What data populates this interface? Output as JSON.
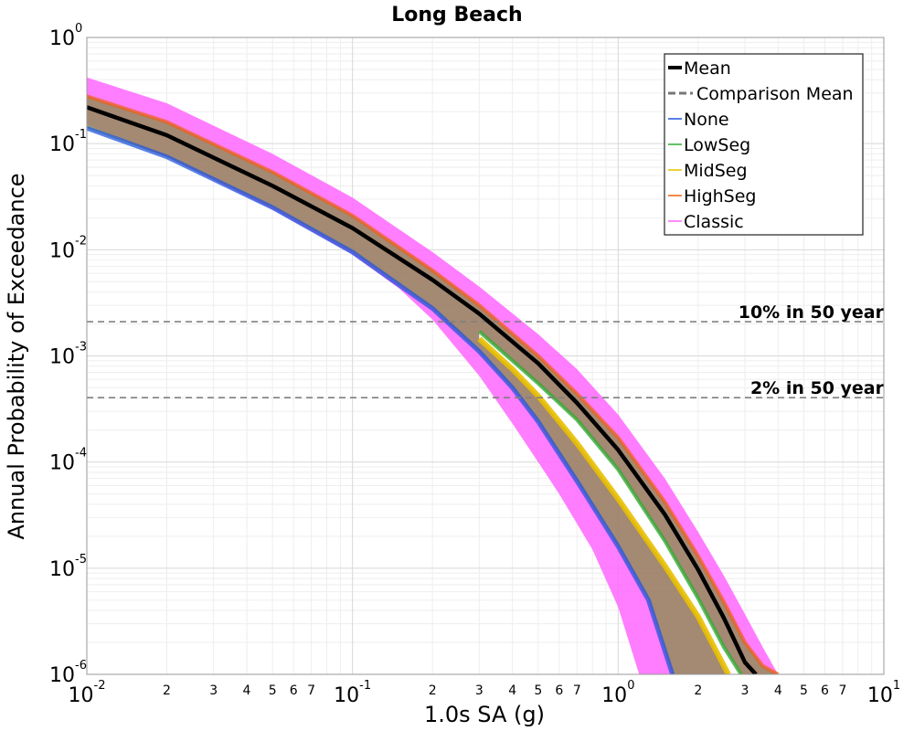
{
  "chart_data": {
    "type": "line",
    "title": "Long Beach",
    "xlabel": "1.0s SA (g)",
    "ylabel": "Annual Probability of Exceedance",
    "x_scale": "log",
    "y_scale": "log",
    "xlim": [
      0.01,
      10
    ],
    "ylim": [
      1e-06,
      1
    ],
    "grid": true,
    "legend_position": "top-right",
    "x_ticks_major": [
      {
        "base": "10",
        "exp": "-2"
      },
      {
        "base": "10",
        "exp": "-1"
      },
      {
        "base": "10",
        "exp": "0"
      },
      {
        "base": "10",
        "exp": "1"
      }
    ],
    "y_ticks_major": [
      {
        "base": "10",
        "exp": "0"
      },
      {
        "base": "10",
        "exp": "-1"
      },
      {
        "base": "10",
        "exp": "-2"
      },
      {
        "base": "10",
        "exp": "-3"
      },
      {
        "base": "10",
        "exp": "-4"
      },
      {
        "base": "10",
        "exp": "-5"
      },
      {
        "base": "10",
        "exp": "-6"
      }
    ],
    "x_ticks_minor_labels": [
      "2",
      "3",
      "4",
      "5",
      "6",
      "7"
    ],
    "reference_lines": [
      {
        "label": "10% in 50 year",
        "y": 0.0021
      },
      {
        "label": "2% in 50 year",
        "y": 0.000404
      }
    ],
    "legend": [
      {
        "name": "Mean",
        "color": "#000000",
        "style": "solid-thick"
      },
      {
        "name": "Comparison Mean",
        "color": "#777777",
        "style": "dashed"
      },
      {
        "name": "None",
        "color": "#2255dd",
        "style": "solid"
      },
      {
        "name": "LowSeg",
        "color": "#33aa33",
        "style": "solid"
      },
      {
        "name": "MidSeg",
        "color": "#e8c000",
        "style": "solid"
      },
      {
        "name": "HighSeg",
        "color": "#f06010",
        "style": "solid"
      },
      {
        "name": "Classic",
        "color": "#ff66ff",
        "style": "solid"
      }
    ],
    "series": [
      {
        "name": "Mean",
        "x": [
          0.01,
          0.02,
          0.05,
          0.1,
          0.2,
          0.3,
          0.5,
          0.7,
          1.0,
          1.5,
          2.0,
          2.5,
          3.0,
          3.3
        ],
        "y": [
          0.22,
          0.12,
          0.04,
          0.016,
          0.0052,
          0.0025,
          0.00085,
          0.00036,
          0.00013,
          3.2e-05,
          9.7e-06,
          3.4e-06,
          1.3e-06,
          1e-06
        ]
      },
      {
        "name": "Classic",
        "band": "outer-upper",
        "x": [
          0.01,
          0.02,
          0.05,
          0.1,
          0.2,
          0.3,
          0.5,
          0.7,
          1.0,
          1.5,
          2.0,
          2.5,
          3.0,
          3.5,
          4.0
        ],
        "y": [
          0.42,
          0.24,
          0.08,
          0.031,
          0.0095,
          0.0045,
          0.0016,
          0.00075,
          0.00028,
          7e-05,
          2.2e-05,
          8.5e-06,
          3.7e-06,
          1.8e-06,
          1e-06
        ]
      },
      {
        "name": "Classic",
        "band": "outer-lower",
        "x": [
          0.01,
          0.02,
          0.05,
          0.1,
          0.15,
          0.2,
          0.3,
          0.4,
          0.5,
          0.6,
          0.8,
          1.0,
          1.2
        ],
        "y": [
          0.15,
          0.075,
          0.024,
          0.009,
          0.0043,
          0.0022,
          0.00065,
          0.00023,
          0.0001,
          5e-05,
          1.5e-05,
          4.3e-06,
          1e-06
        ]
      },
      {
        "name": "None",
        "band": "branch-lower",
        "x": [
          0.01,
          0.02,
          0.05,
          0.1,
          0.2,
          0.3,
          0.4,
          0.5,
          0.7,
          1.0,
          1.3,
          1.6
        ],
        "y": [
          0.14,
          0.075,
          0.025,
          0.0095,
          0.0028,
          0.0011,
          0.0005,
          0.00024,
          6.6e-05,
          1.6e-05,
          5e-06,
          1e-06
        ]
      },
      {
        "name": "MidSeg",
        "band": "branch-lower-edge",
        "x": [
          0.3,
          0.4,
          0.5,
          0.7,
          1.0,
          1.5,
          2.0,
          2.6
        ],
        "y": [
          0.00145,
          0.00075,
          0.00042,
          0.00015,
          4.5e-05,
          1.05e-05,
          3.5e-06,
          1e-06
        ]
      },
      {
        "name": "HighSeg",
        "band": "branch-upper",
        "x": [
          0.01,
          0.02,
          0.05,
          0.1,
          0.2,
          0.3,
          0.5,
          0.7,
          1.0,
          1.5,
          2.0,
          2.5,
          3.0,
          3.5,
          4.0
        ],
        "y": [
          0.28,
          0.16,
          0.054,
          0.021,
          0.0064,
          0.003,
          0.001,
          0.00044,
          0.00017,
          4.2e-05,
          1.3e-05,
          4.8e-06,
          2e-06,
          1.2e-06,
          1e-06
        ]
      },
      {
        "name": "LowSeg",
        "band": "branch-upper-inner",
        "x": [
          0.3,
          0.5,
          0.7,
          1.0,
          1.5,
          2.0,
          2.5,
          2.9
        ],
        "y": [
          0.0017,
          0.00055,
          0.00025,
          8.5e-05,
          1.8e-05,
          5.2e-06,
          1.8e-06,
          1e-06
        ]
      }
    ]
  }
}
